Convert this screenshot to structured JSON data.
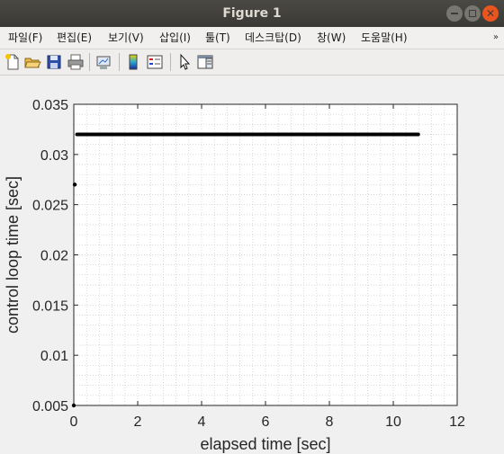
{
  "window": {
    "title": "Figure 1"
  },
  "menu": {
    "items": [
      "파일(F)",
      "편집(E)",
      "보기(V)",
      "삽입(I)",
      "툴(T)",
      "데스크탑(D)",
      "창(W)",
      "도움말(H)"
    ],
    "overflow_icon": "double-chevron-icon"
  },
  "toolbar": {
    "icons": [
      "new-figure-icon",
      "open-file-icon",
      "save-icon",
      "print-icon",
      "link-plot-icon",
      "colorbar-icon",
      "legend-icon",
      "pointer-icon",
      "property-editor-icon"
    ]
  },
  "chart_data": {
    "type": "scatter",
    "xlabel": "elapsed time [sec]",
    "ylabel": "control loop time [sec]",
    "xlim": [
      0,
      12
    ],
    "ylim": [
      0.005,
      0.035
    ],
    "xticks": [
      "0",
      "2",
      "4",
      "6",
      "8",
      "10",
      "12"
    ],
    "yticks": [
      "0.005",
      "0.01",
      "0.015",
      "0.02",
      "0.025",
      "0.03",
      "0.035"
    ],
    "grid": "minor-dotted",
    "marker_color": "#000000",
    "series": [
      {
        "outliers": [
          [
            0.0,
            0.005
          ],
          [
            0.03,
            0.027
          ]
        ],
        "steady_value": 0.032,
        "x_range": [
          0.1,
          10.8
        ]
      }
    ]
  }
}
